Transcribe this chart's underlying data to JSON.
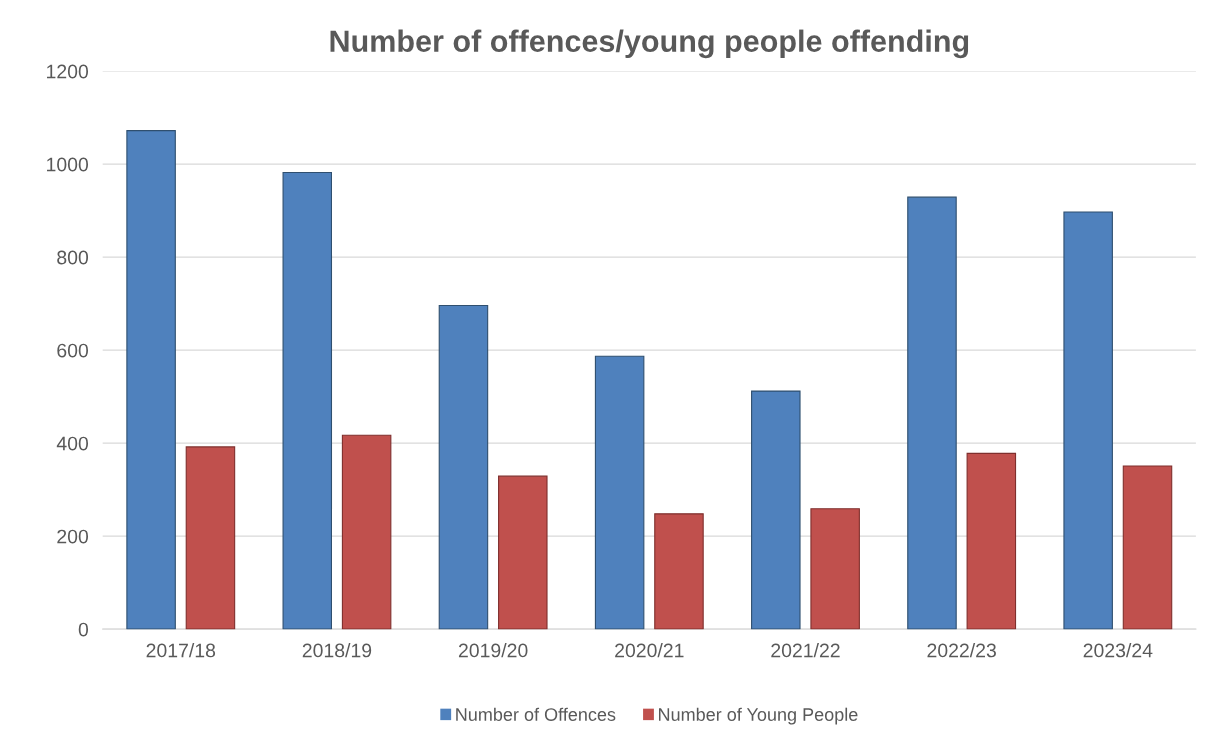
{
  "chart_data": {
    "type": "bar",
    "title": "Number of offences/young people offending",
    "categories": [
      "2017/18",
      "2018/19",
      "2019/20",
      "2020/21",
      "2021/22",
      "2022/23",
      "2023/24"
    ],
    "series": [
      {
        "name": "Number of Offences",
        "color": "#4f81bd",
        "values": [
          1072,
          982,
          696,
          587,
          512,
          929,
          897
        ]
      },
      {
        "name": "Number of Young People",
        "color": "#c0504d",
        "values": [
          392,
          417,
          329,
          248,
          259,
          378,
          351
        ]
      }
    ],
    "ylim": [
      0,
      1200
    ],
    "yticks": [
      0,
      200,
      400,
      600,
      800,
      1000,
      1200
    ],
    "grid": "y",
    "legend": "bottom"
  }
}
